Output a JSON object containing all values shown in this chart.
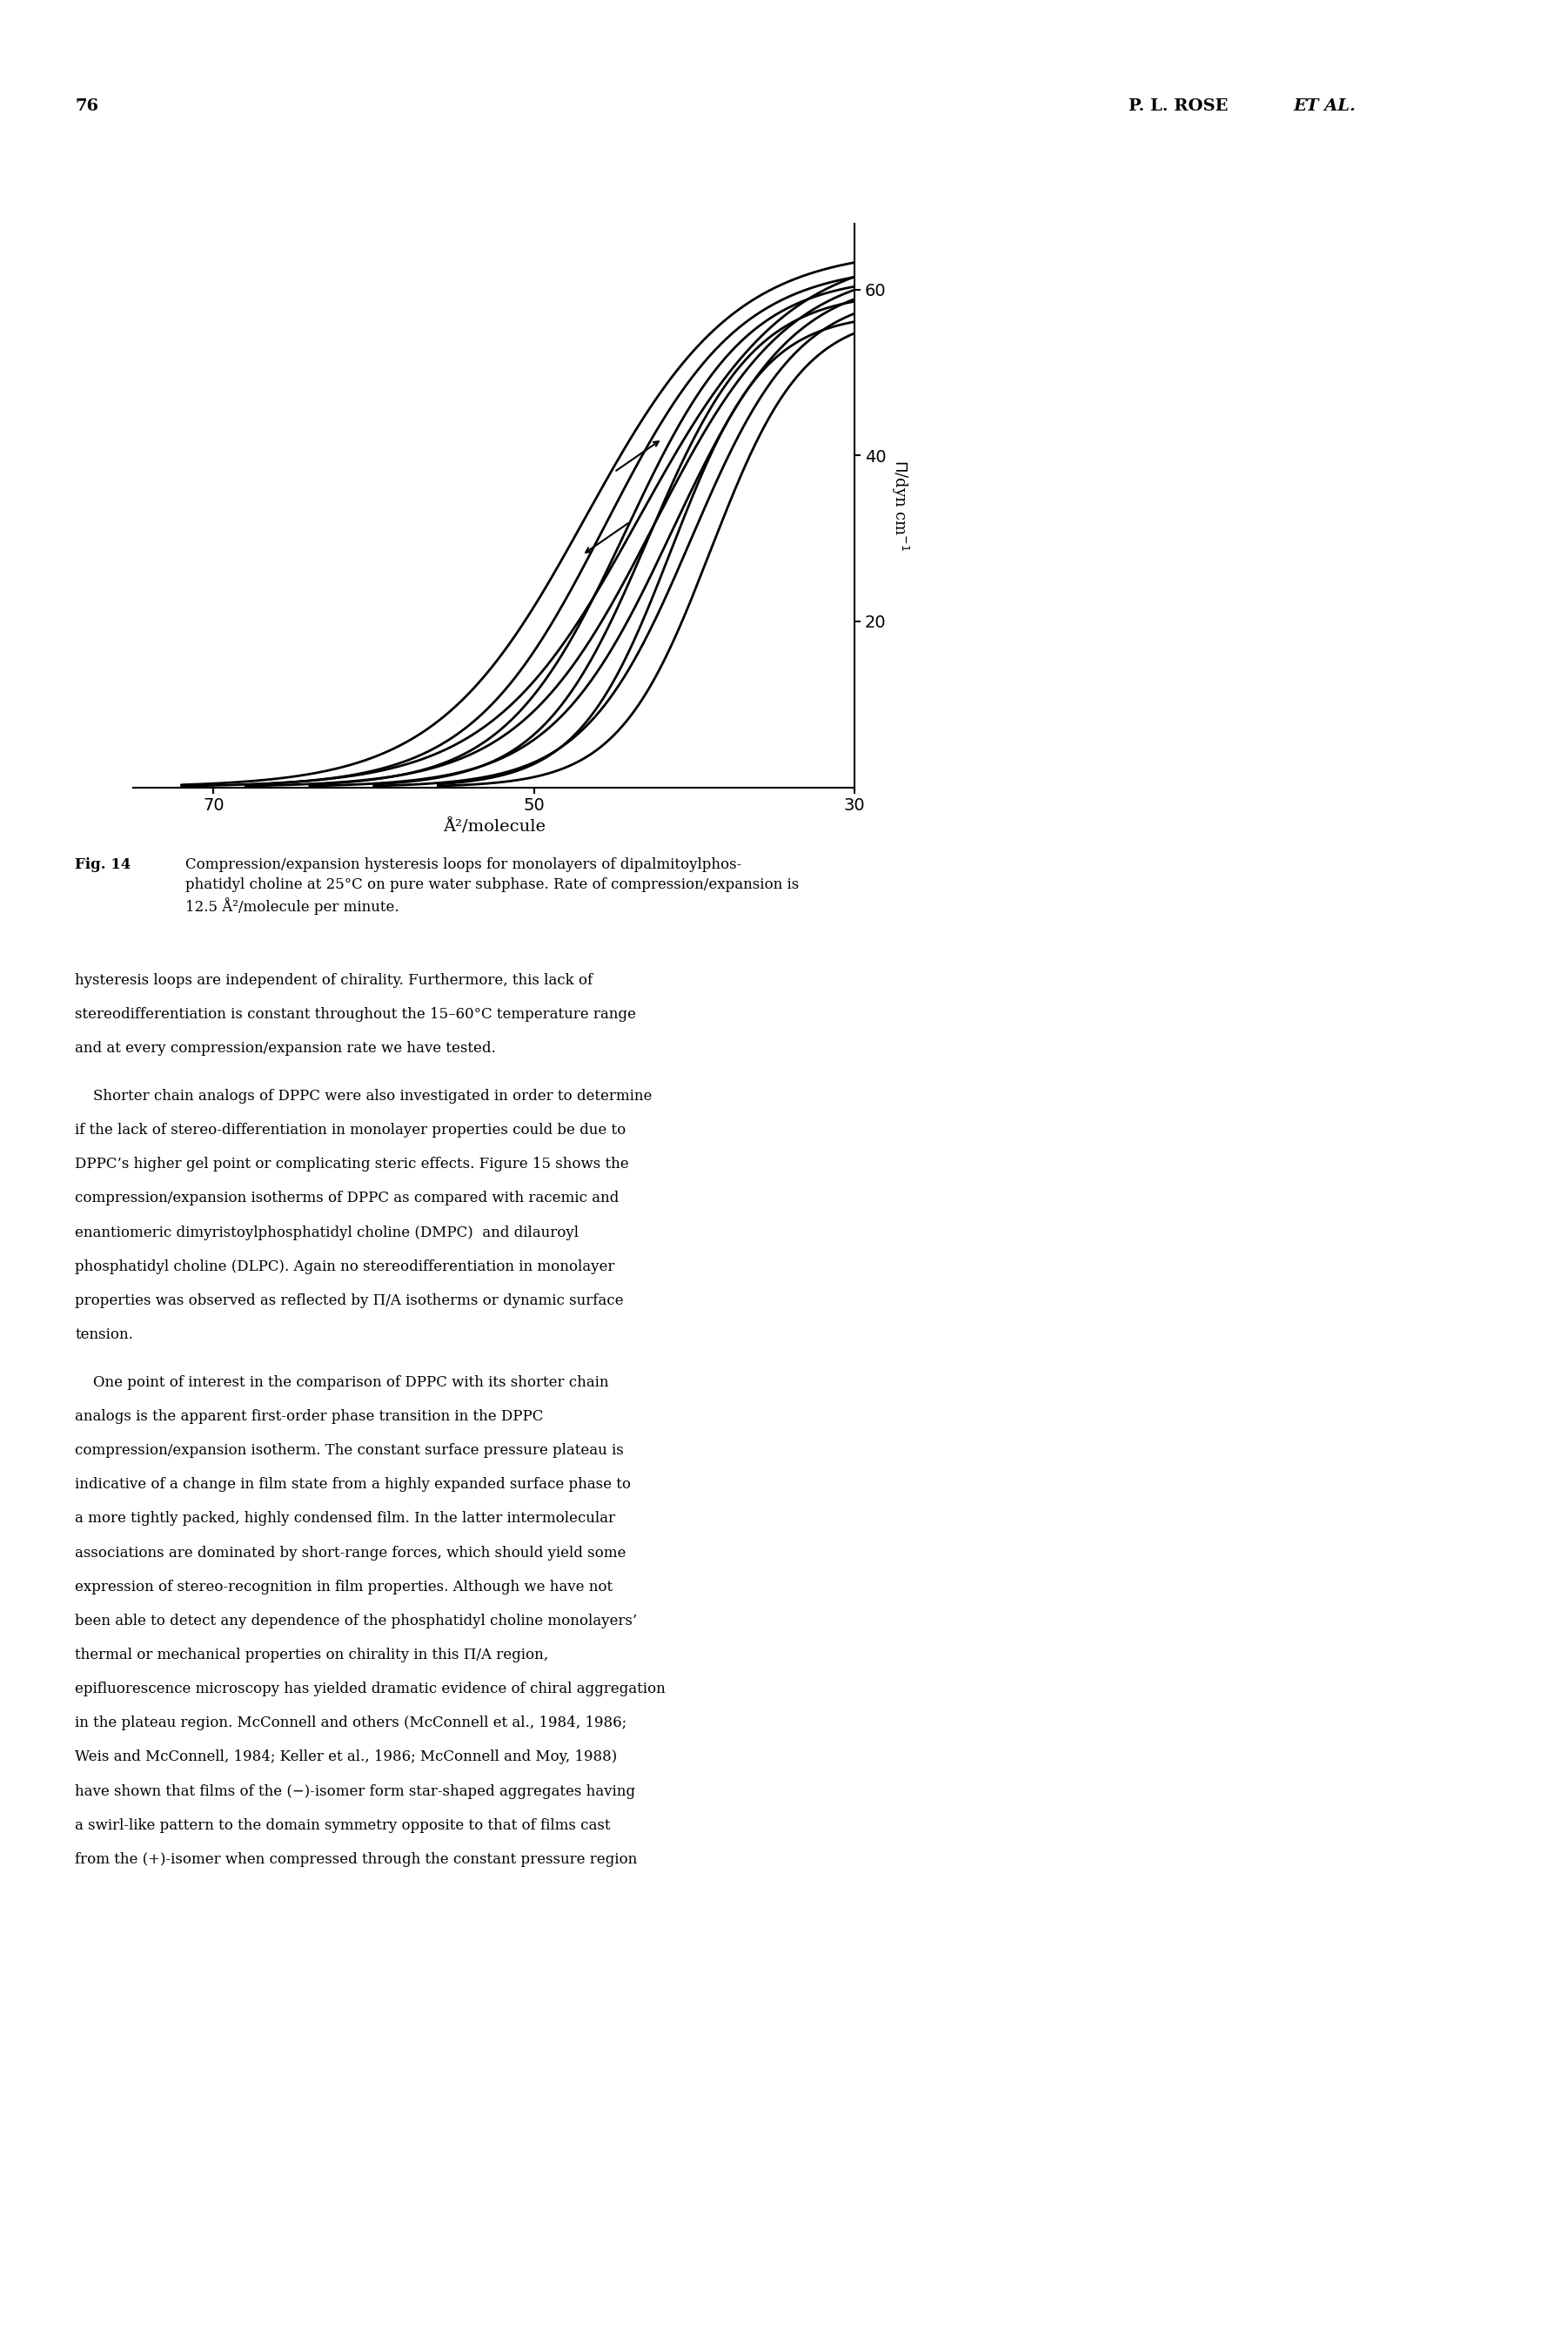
{
  "page_number": "76",
  "header_text": "P. L. ROSE  ET AL.",
  "fig_label": "Fig. 14",
  "fig_caption": "Compression/expansion hysteresis loops for monolayers of dipalmitoylphos-\nphatidyl choline at 25°C on pure water subphase. Rate of compression/expansion is\n12.5 Å²/molecule per minute.",
  "xlabel": "Å²/molecule",
  "ylabel": "Π/dyn cm⁻¹",
  "xmin": 30,
  "xmax": 75,
  "ymin": 0,
  "ymax": 68,
  "xticks": [
    70,
    50,
    30
  ],
  "yticks": [
    20,
    40,
    60
  ],
  "body_text": [
    "hysteresis loops are independent of chirality. Furthermore, this lack of",
    "stereodifferentiation is constant throughout the 15–60°C temperature range",
    "and at every compression/expansion rate we have tested.",
    "",
    "    Shorter chain analogs of DPPC were also investigated in order to determine",
    "if the lack of stereo-differentiation in monolayer properties could be due to",
    "DPPC’s higher gel point or complicating steric effects. Figure 15 shows the",
    "compression/expansion isotherms of DPPC as compared with racemic and",
    "enantiomeric dimyristoylphosphatidyl choline (DMPC)  and dilauroyl",
    "phosphatidyl choline (DLPC). Again no stereodifferentiation in monolayer",
    "properties was observed as reflected by Π/A isotherms or dynamic surface",
    "tension.",
    "",
    "    One point of interest in the comparison of DPPC with its shorter chain",
    "analogs is the apparent first-order phase transition in the DPPC",
    "compression/expansion isotherm. The constant surface pressure plateau is",
    "indicative of a change in film state from a highly expanded surface phase to",
    "a more tightly packed, highly condensed film. In the latter intermolecular",
    "associations are dominated by short-range forces, which should yield some",
    "expression of stereo-recognition in film properties. Although we have not",
    "been able to detect any dependence of the phosphatidyl choline monolayers’",
    "thermal or mechanical properties on chirality in this Π/A region,",
    "epifluorescence microscopy has yielded dramatic evidence of chiral aggregation",
    "in the plateau region. McConnell and others (McConnell et al., 1984, 1986;",
    "Weis and McConnell, 1984; Keller et al., 1986; McConnell and Moy, 1988)",
    "have shown that films of the (−)-isomer form star-shaped aggregates having",
    "a swirl-like pattern to the domain symmetry opposite to that of films cast",
    "from the (+)-isomer when compressed through the constant pressure region"
  ],
  "background_color": "#ffffff",
  "line_color": "#000000"
}
